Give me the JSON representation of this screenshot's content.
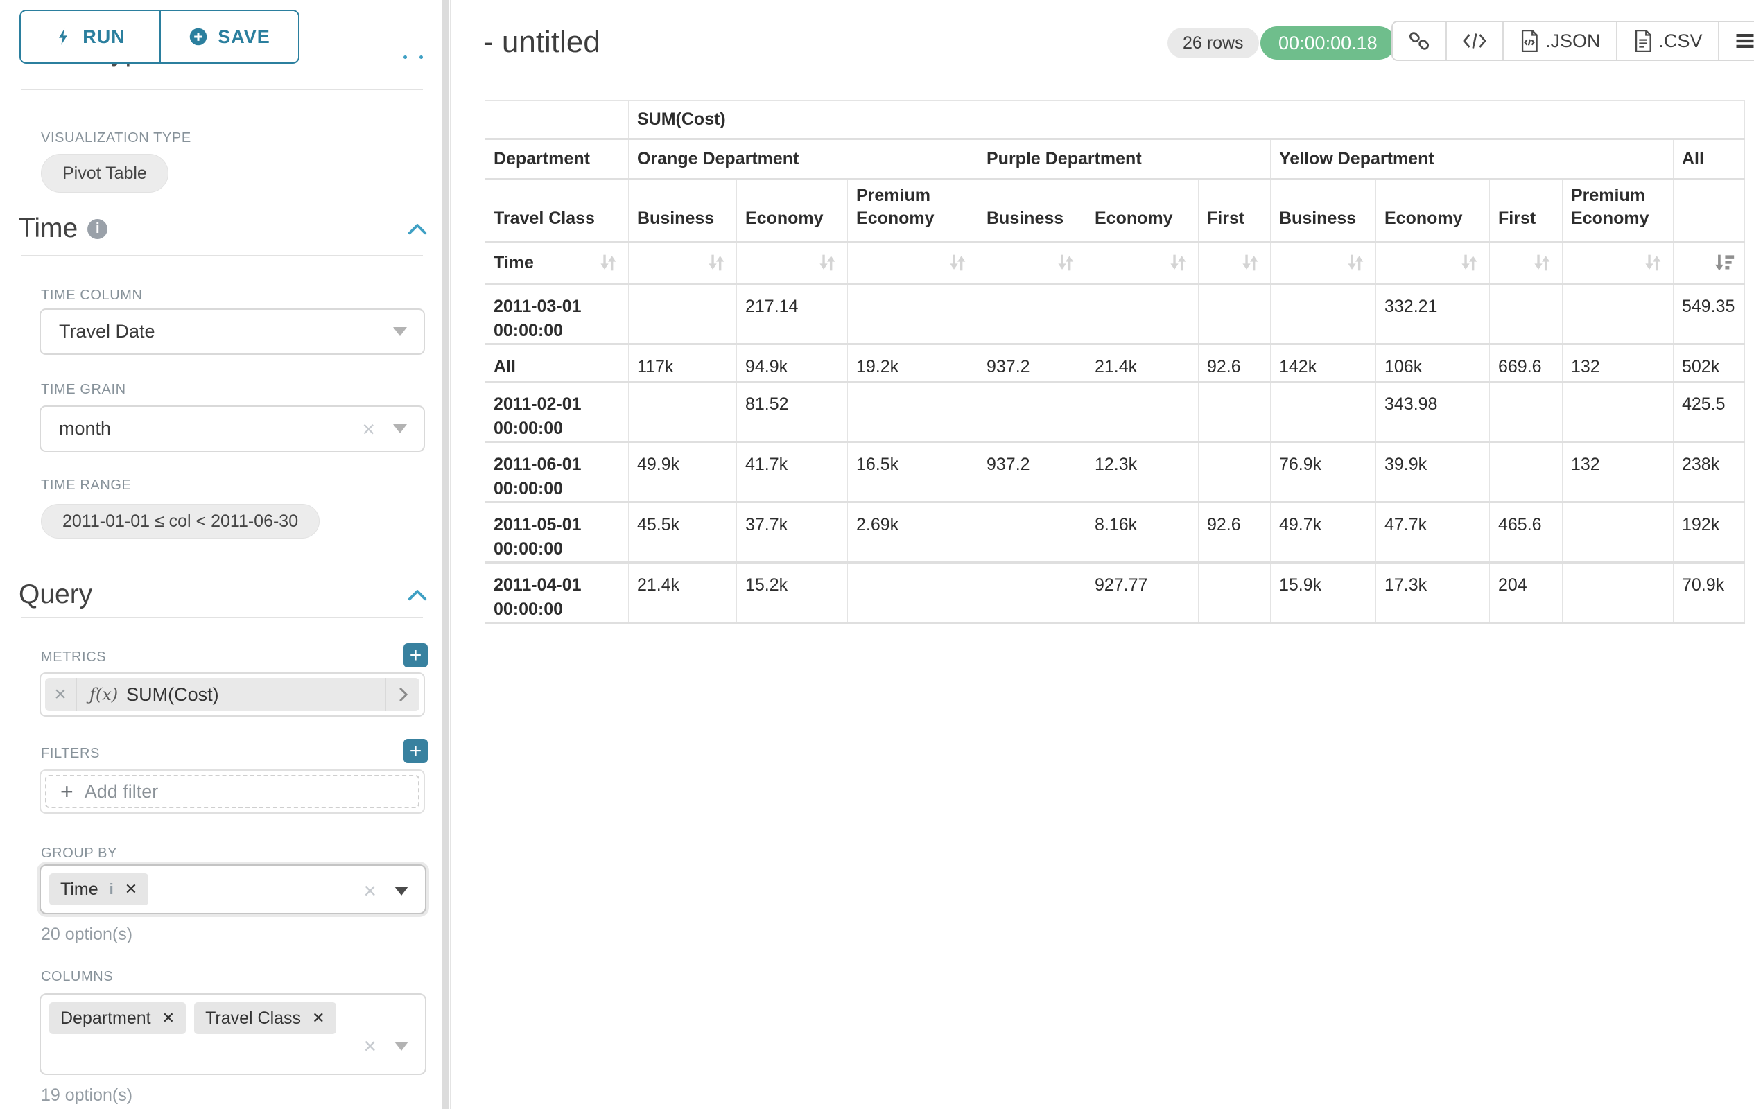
{
  "colors": {
    "accent_teal": "#2b7f9e",
    "accent_teal_bright": "#3fa0c4",
    "plus_button_teal": "#38819f",
    "timer_green": "#6fbe8c"
  },
  "sidebar": {
    "run_button": "RUN",
    "save_button": "SAVE",
    "chart_type_heading": "Chart Type",
    "visualization_type": {
      "label": "VISUALIZATION TYPE",
      "value": "Pivot Table"
    },
    "time": {
      "title": "Time",
      "time_column": {
        "label": "TIME COLUMN",
        "value": "Travel Date"
      },
      "time_grain": {
        "label": "TIME GRAIN",
        "value": "month"
      },
      "time_range": {
        "label": "TIME RANGE",
        "value": "2011-01-01 ≤ col < 2011-06-30"
      }
    },
    "query": {
      "title": "Query",
      "metrics": {
        "label": "METRICS",
        "fn_prefix": "ƒ(x)",
        "value": "SUM(Cost)"
      },
      "filters": {
        "label": "FILTERS",
        "add_label": "Add filter"
      },
      "group_by": {
        "label": "GROUP BY",
        "chips": [
          "Time"
        ],
        "hint": "20 option(s)"
      },
      "columns": {
        "label": "COLUMNS",
        "chips": [
          "Department",
          "Travel Class"
        ],
        "hint": "19 option(s)"
      }
    }
  },
  "header": {
    "title": "- untitled",
    "row_count": "26 rows",
    "elapsed": "00:00:00.18",
    "export_json": ".JSON",
    "export_csv": ".CSV"
  },
  "chart_data": {
    "type": "table",
    "title": "SUM(Cost)",
    "corner_labels": {
      "department": "Department",
      "travel_class": "Travel Class",
      "time": "Time"
    },
    "column_groups": [
      {
        "name": "Orange Department",
        "columns": [
          "Business",
          "Economy",
          "Premium Economy"
        ]
      },
      {
        "name": "Purple Department",
        "columns": [
          "Business",
          "Economy",
          "First"
        ]
      },
      {
        "name": "Yellow Department",
        "columns": [
          "Business",
          "Economy",
          "First",
          "Premium Economy"
        ]
      },
      {
        "name": "All",
        "columns": [
          ""
        ]
      }
    ],
    "rows": [
      {
        "label": "2011-03-01 00:00:00",
        "values": [
          "",
          "217.14",
          "",
          "",
          "",
          "",
          "",
          "332.21",
          "",
          "",
          "549.35"
        ]
      },
      {
        "label": "All",
        "values": [
          "117k",
          "94.9k",
          "19.2k",
          "937.2",
          "21.4k",
          "92.6",
          "142k",
          "106k",
          "669.6",
          "132",
          "502k"
        ]
      },
      {
        "label": "2011-02-01 00:00:00",
        "values": [
          "",
          "81.52",
          "",
          "",
          "",
          "",
          "",
          "343.98",
          "",
          "",
          "425.5"
        ]
      },
      {
        "label": "2011-06-01 00:00:00",
        "values": [
          "49.9k",
          "41.7k",
          "16.5k",
          "937.2",
          "12.3k",
          "",
          "76.9k",
          "39.9k",
          "",
          "132",
          "238k"
        ]
      },
      {
        "label": "2011-05-01 00:00:00",
        "values": [
          "45.5k",
          "37.7k",
          "2.69k",
          "",
          "8.16k",
          "92.6",
          "49.7k",
          "47.7k",
          "465.6",
          "",
          "192k"
        ]
      },
      {
        "label": "2011-04-01 00:00:00",
        "values": [
          "21.4k",
          "15.2k",
          "",
          "",
          "927.77",
          "",
          "15.9k",
          "17.3k",
          "204",
          "",
          "70.9k"
        ]
      }
    ],
    "sort": {
      "active_column": "All",
      "direction": "desc"
    }
  }
}
